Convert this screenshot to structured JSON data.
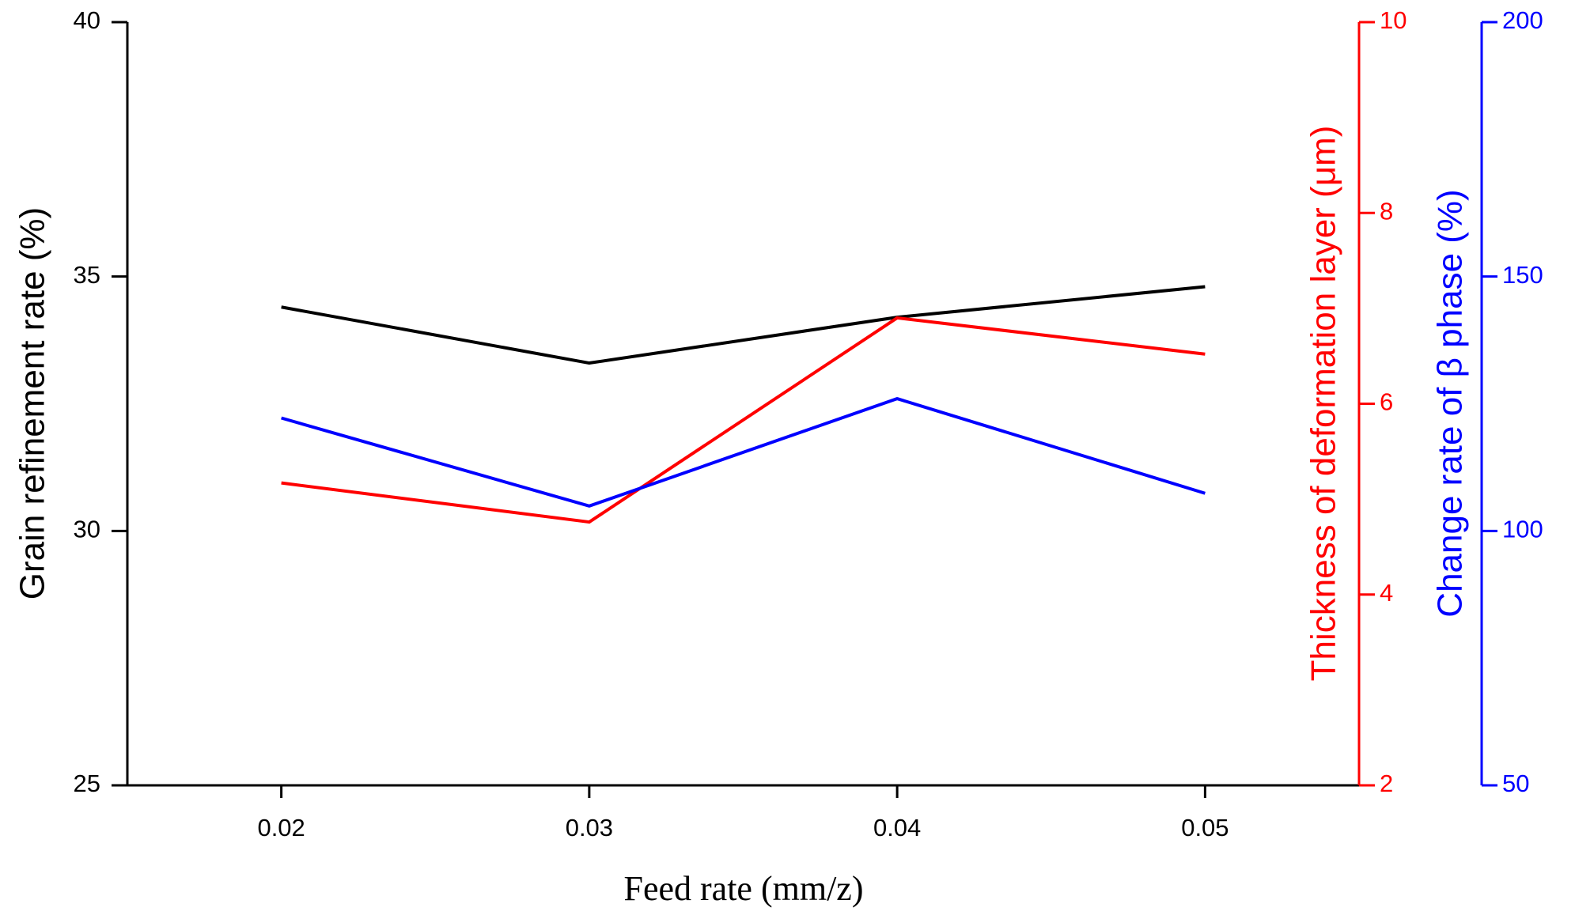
{
  "chart_data": {
    "type": "line",
    "x": [
      0.02,
      0.03,
      0.04,
      0.05
    ],
    "xlim": [
      0.015,
      0.055
    ],
    "xticks": [
      0.02,
      0.03,
      0.04,
      0.05
    ],
    "x_label": "Feed rate (mm/z)",
    "y_label": "Grain refinement rate (%)",
    "y2_label": "Thickness of deformation layer (μm)",
    "y3_label": "Change rate of β phase (%)",
    "ylim": [
      25,
      40
    ],
    "yticks": [
      25,
      30,
      35,
      40
    ],
    "y2lim": [
      2,
      10
    ],
    "y2ticks": [
      2,
      4,
      6,
      8,
      10
    ],
    "y3lim": [
      50,
      200
    ],
    "y3ticks": [
      50,
      100,
      150,
      200
    ],
    "series": [
      {
        "color": "#000000",
        "axis": "y",
        "values": [
          34.4,
          33.3,
          34.2,
          34.8
        ]
      },
      {
        "color": "#ff0000",
        "axis": "y2",
        "values": [
          5.17,
          4.76,
          6.9,
          6.52
        ]
      },
      {
        "color": "#0000ff",
        "axis": "y3",
        "values": [
          122.2,
          104.9,
          126,
          107.4
        ]
      }
    ]
  }
}
